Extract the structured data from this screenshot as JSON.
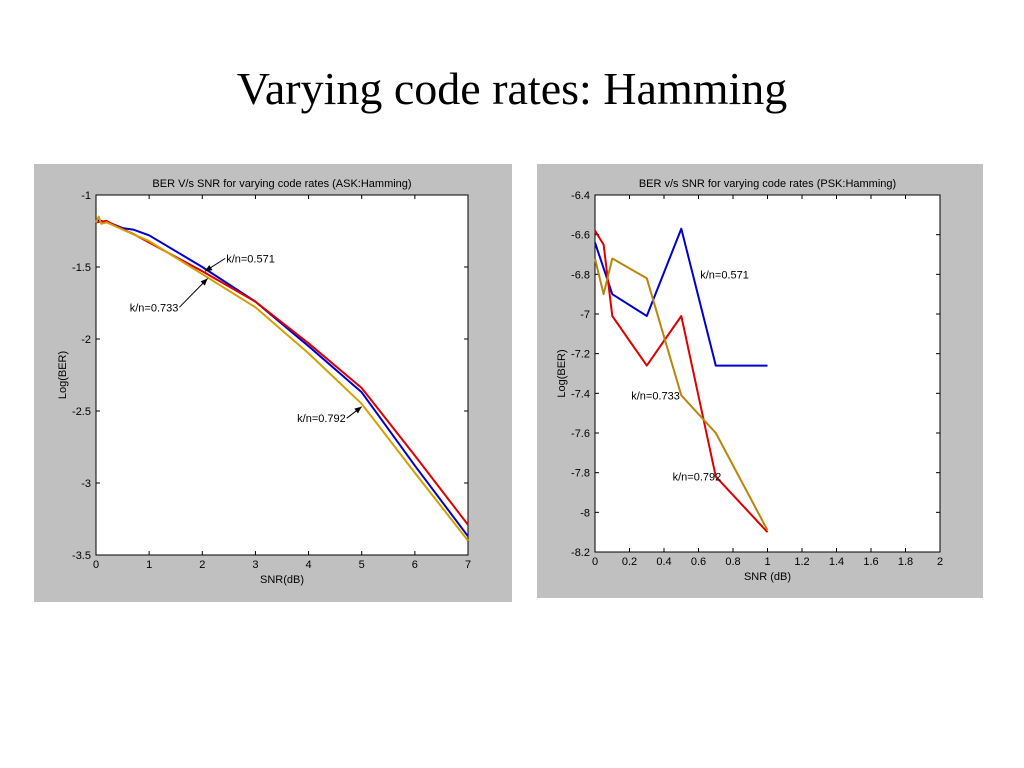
{
  "slide": {
    "title": "Varying code rates: Hamming"
  },
  "chart_data": [
    {
      "type": "line",
      "title": "BER V/s SNR for varying code rates (ASK:Hamming)",
      "xlabel": "SNR(dB)",
      "ylabel": "Log(BER)",
      "xlim": [
        0,
        7
      ],
      "ylim": [
        -3.5,
        -1
      ],
      "xticks": [
        0,
        1,
        2,
        3,
        4,
        5,
        6,
        7
      ],
      "xtick_labels": [
        "0",
        "1",
        "2",
        "3",
        "4",
        "5",
        "6",
        "7"
      ],
      "yticks": [
        -1,
        -1.5,
        -2,
        -2.5,
        -3,
        -3.5
      ],
      "ytick_labels": [
        "-1",
        "-1.5",
        "-2",
        "-2.5",
        "-3",
        "-3.5"
      ],
      "grid": false,
      "series": [
        {
          "name": "k/n=0.571",
          "color": "#0000cc",
          "x": [
            0,
            0.3,
            0.5,
            0.7,
            1,
            2,
            3,
            4,
            5,
            6,
            7
          ],
          "y": [
            -1.17,
            -1.2,
            -1.23,
            -1.24,
            -1.28,
            -1.5,
            -1.74,
            -2.05,
            -2.37,
            -2.88,
            -3.37
          ]
        },
        {
          "name": "k/n=0.733",
          "color": "#dd0000",
          "x": [
            0,
            0.2,
            0.4,
            0.7,
            1,
            2,
            3,
            4,
            5,
            6,
            7
          ],
          "y": [
            -1.19,
            -1.18,
            -1.22,
            -1.27,
            -1.33,
            -1.53,
            -1.74,
            -2.03,
            -2.34,
            -2.81,
            -3.29
          ]
        },
        {
          "name": "k/n=0.792",
          "color": "#d4a000",
          "x": [
            0,
            0.05,
            0.1,
            0.2,
            0.5,
            1,
            2,
            3,
            4,
            5,
            6,
            7
          ],
          "y": [
            -1.19,
            -1.15,
            -1.2,
            -1.19,
            -1.24,
            -1.32,
            -1.55,
            -1.78,
            -2.1,
            -2.45,
            -2.93,
            -3.4
          ]
        }
      ],
      "annotations": [
        {
          "text": "k/n=0.571",
          "color": "#000000",
          "x": 2.45,
          "y": -1.44,
          "arrow_to": [
            2.05,
            -1.53
          ],
          "align": "start"
        },
        {
          "text": "k/n=0.733",
          "color": "#000000",
          "x": 1.55,
          "y": -1.78,
          "arrow_to": [
            2.1,
            -1.58
          ],
          "align": "end"
        },
        {
          "text": "k/n=0.792",
          "color": "#000000",
          "x": 4.7,
          "y": -2.55,
          "arrow_to": [
            5.0,
            -2.47
          ],
          "align": "end"
        }
      ]
    },
    {
      "type": "line",
      "title": "BER v/s SNR for varying code rates (PSK:Hamming)",
      "xlabel": "SNR (dB)",
      "ylabel": "Log(BER)",
      "xlim": [
        0,
        2
      ],
      "ylim": [
        -8.2,
        -6.4
      ],
      "xticks": [
        0,
        0.2,
        0.4,
        0.6,
        0.8,
        1,
        1.2,
        1.4,
        1.6,
        1.8,
        2
      ],
      "xtick_labels": [
        "0",
        "0.2",
        "0.4",
        "0.6",
        "0.8",
        "1",
        "1.2",
        "1.4",
        "1.6",
        "1.8",
        "2"
      ],
      "yticks": [
        -6.4,
        -6.6,
        -6.8,
        -7,
        -7.2,
        -7.4,
        -7.6,
        -7.8,
        -8,
        -8.2
      ],
      "ytick_labels": [
        "-6.4",
        "-6.6",
        "-6.8",
        "-7",
        "-7.2",
        "-7.4",
        "-7.6",
        "-7.8",
        "-8",
        "-8.2"
      ],
      "grid": false,
      "series": [
        {
          "name": "k/n=0.571",
          "color": "#0000cc",
          "x": [
            0,
            0.1,
            0.3,
            0.5,
            0.7,
            1
          ],
          "y": [
            -6.64,
            -6.9,
            -7.01,
            -6.57,
            -7.26,
            -7.26
          ]
        },
        {
          "name": "k/n=0.733",
          "color": "#dd0000",
          "x": [
            0,
            0.05,
            0.1,
            0.3,
            0.5,
            0.7,
            1
          ],
          "y": [
            -6.58,
            -6.65,
            -7.01,
            -7.26,
            -7.01,
            -7.82,
            -8.1
          ]
        },
        {
          "name": "k/n=0.792",
          "color": "#b8860b",
          "x": [
            0,
            0.05,
            0.1,
            0.3,
            0.5,
            0.7,
            1
          ],
          "y": [
            -6.72,
            -6.9,
            -6.72,
            -6.82,
            -7.41,
            -7.6,
            -8.09
          ]
        }
      ],
      "annotations": [
        {
          "text": "k/n=0.571",
          "color": "#000000",
          "x": 0.61,
          "y": -6.8,
          "align": "start"
        },
        {
          "text": "k/n=0.733",
          "color": "#000000",
          "x": 0.21,
          "y": -7.41,
          "align": "start"
        },
        {
          "text": "k/n=0.792",
          "color": "#000000",
          "x": 0.45,
          "y": -7.82,
          "align": "start"
        }
      ]
    }
  ]
}
